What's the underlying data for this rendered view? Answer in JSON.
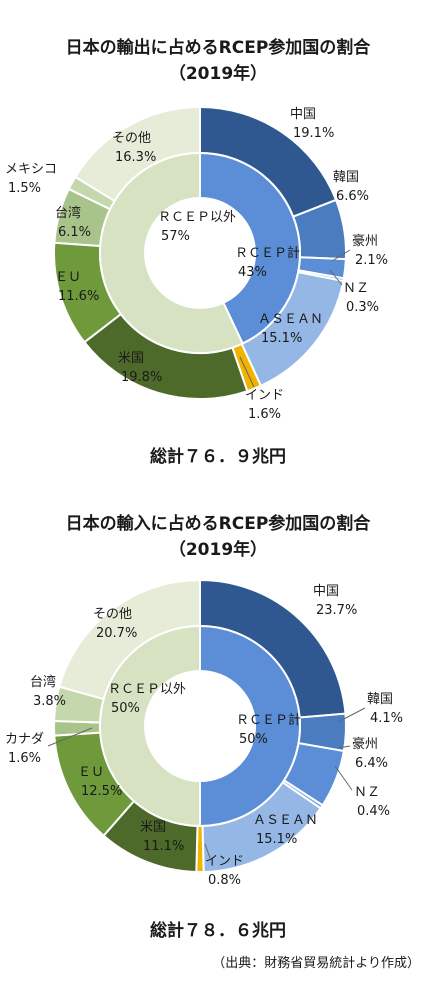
{
  "source": "（出典：財務省貿易統計より作成）",
  "chart_data": [
    {
      "type": "pie",
      "title": "日本の輸出に占めるRCEP参加国の割合",
      "subtitle": "（2019年）",
      "total": "総計７６．９兆円",
      "inner": [
        {
          "name": "ＲＣＥＰ計",
          "pct": "43%",
          "value": 43,
          "color": "#5b8ed6"
        },
        {
          "name": "ＲＣＥＰ以外",
          "pct": "57%",
          "value": 57,
          "color": "#d6e2c2"
        }
      ],
      "outer": [
        {
          "name": "中国",
          "pct": "19.1%",
          "value": 19.1,
          "color": "#2f5890"
        },
        {
          "name": "韓国",
          "pct": "6.6%",
          "value": 6.6,
          "color": "#4a7cbf"
        },
        {
          "name": "豪州",
          "pct": "2.1%",
          "value": 2.1,
          "color": "#5b8ed6"
        },
        {
          "name": "ＮＺ",
          "pct": "0.3%",
          "value": 0.3,
          "color": "#7aa3de"
        },
        {
          "name": "ＡＳＥＡＮ",
          "pct": "15.1%",
          "value": 15.1,
          "color": "#95b7e6"
        },
        {
          "name": "インド",
          "pct": "1.6%",
          "value": 1.6,
          "color": "#f0b400"
        },
        {
          "name": "米国",
          "pct": "19.8%",
          "value": 19.8,
          "color": "#4e6a2a"
        },
        {
          "name": "ＥＵ",
          "pct": "11.6%",
          "value": 11.6,
          "color": "#6f9a3c"
        },
        {
          "name": "台湾",
          "pct": "6.1%",
          "value": 6.1,
          "color": "#a8c48a"
        },
        {
          "name": "メキシコ",
          "pct": "1.5%",
          "value": 1.5,
          "color": "#c5d8ad"
        },
        {
          "name": "その他",
          "pct": "16.3%",
          "value": 16.3,
          "color": "#e6ecd8"
        }
      ]
    },
    {
      "type": "pie",
      "title": "日本の輸入に占めるRCEP参加国の割合",
      "subtitle": "（2019年）",
      "total": "総計７８．６兆円",
      "inner": [
        {
          "name": "ＲＣＥＰ計",
          "pct": "50%",
          "value": 50,
          "color": "#5b8ed6"
        },
        {
          "name": "ＲＣＥＰ以外",
          "pct": "50%",
          "value": 50,
          "color": "#d6e2c2"
        }
      ],
      "outer": [
        {
          "name": "中国",
          "pct": "23.7%",
          "value": 23.7,
          "color": "#2f5890"
        },
        {
          "name": "韓国",
          "pct": "4.1%",
          "value": 4.1,
          "color": "#4a7cbf"
        },
        {
          "name": "豪州",
          "pct": "6.4%",
          "value": 6.4,
          "color": "#5b8ed6"
        },
        {
          "name": "ＮＺ",
          "pct": "0.4%",
          "value": 0.4,
          "color": "#7aa3de"
        },
        {
          "name": "ＡＳＥＡＮ",
          "pct": "15.1%",
          "value": 15.1,
          "color": "#95b7e6"
        },
        {
          "name": "インド",
          "pct": "0.8%",
          "value": 0.8,
          "color": "#f0b400"
        },
        {
          "name": "米国",
          "pct": "11.1%",
          "value": 11.1,
          "color": "#4e6a2a"
        },
        {
          "name": "ＥＵ",
          "pct": "12.5%",
          "value": 12.5,
          "color": "#6f9a3c"
        },
        {
          "name": "カナダ",
          "pct": "1.6%",
          "value": 1.6,
          "color": "#a8c48a"
        },
        {
          "name": "台湾",
          "pct": "3.8%",
          "value": 3.8,
          "color": "#c5d8ad"
        },
        {
          "name": "その他",
          "pct": "20.7%",
          "value": 20.7,
          "color": "#e6ecd8"
        }
      ]
    }
  ]
}
